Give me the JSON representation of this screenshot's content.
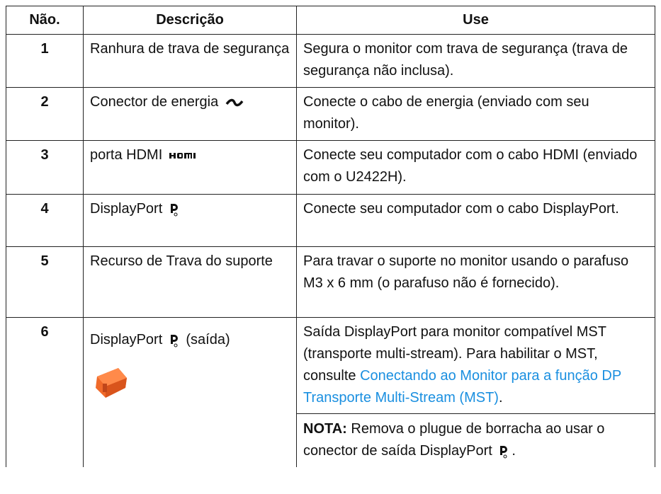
{
  "table": {
    "headers": [
      "Não.",
      "Descrição",
      "Use"
    ],
    "rows": [
      {
        "number": "1",
        "description": "Ranhura de trava de segurança",
        "use": "Segura o monitor com trava de segurança (trava de segurança não inclusa)."
      },
      {
        "number": "2",
        "description": "Conector de energia",
        "use": "Conecte o cabo de energia (enviado com seu monitor)."
      },
      {
        "number": "3",
        "description": "porta HDMI",
        "use": "Conecte seu computador com o cabo HDMI (enviado com o U2422H)."
      },
      {
        "number": "4",
        "description": "DisplayPort",
        "use": "Conecte seu computador com o cabo DisplayPort."
      },
      {
        "number": "5",
        "description": "Recurso de Trava do suporte",
        "use": "Para travar o suporte no monitor usando o parafuso M3 x 6 mm (o parafuso não é fornecido)."
      },
      {
        "number": "6",
        "description": "DisplayPort",
        "description_suffix": "(saída)",
        "use": "Saída DisplayPort para monitor compatível MST (transporte multi-stream). Para habilitar o MST, consulte",
        "use_link": "Conectando ao Monitor para a função DP Transporte Multi-Stream (MST)",
        "use_end": ".",
        "note_label": "NOTA:",
        "note_text": "Remova o plugue de borracha ao usar o conector de saída DisplayPort",
        "note_end": "."
      }
    ]
  }
}
